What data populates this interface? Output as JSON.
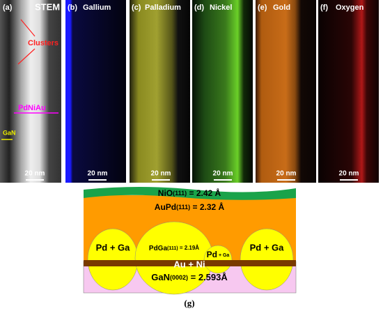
{
  "panels": [
    {
      "label": "(a)",
      "title": "STEM",
      "scale": "20 nm"
    },
    {
      "label": "(b)",
      "title": "Gallium",
      "scale": "20 nm"
    },
    {
      "label": "(c)",
      "title": "Palladium",
      "scale": "20 nm"
    },
    {
      "label": "(d)",
      "title": "Nickel",
      "scale": "20 nm"
    },
    {
      "label": "(e)",
      "title": "Gold",
      "scale": "20 nm"
    },
    {
      "label": "(f)",
      "title": "Oxygen",
      "scale": "20 nm"
    }
  ],
  "annotations": {
    "clusters": "Clusters",
    "pdniau": "PdNiAu",
    "gan": "GaN"
  },
  "diagram": {
    "nio": {
      "main": "NiO",
      "sub": "(111)",
      "rest": " = 2.42 Å"
    },
    "aupd": {
      "main": "AuPd",
      "sub": "(111)",
      "rest": " = 2.32 Å"
    },
    "pdga_left": "Pd + Ga",
    "pdga": {
      "main": "PdGa",
      "sub": "(111)",
      "rest": " = 2.19Å"
    },
    "pd_small": {
      "main": "Pd",
      "sub": " + Ga"
    },
    "pdga_right": "Pd + Ga",
    "auni": "Au + Ni",
    "gan": {
      "main": "GaN",
      "sub": "(0002)",
      "rest": " = 2.593Å"
    },
    "caption": "(g)"
  }
}
